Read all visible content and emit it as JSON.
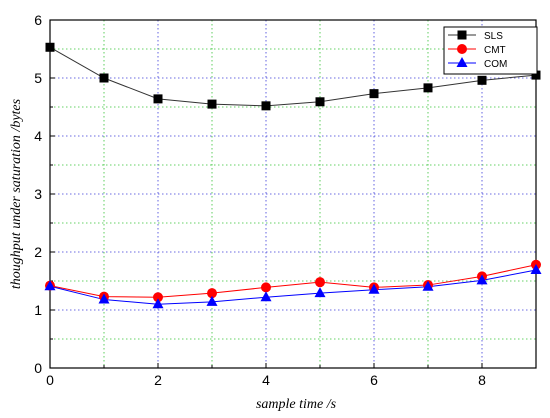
{
  "chart_data": {
    "type": "line",
    "xlabel": "sample time /s",
    "ylabel": "thoughput under saturation /bytes",
    "xlim": [
      0,
      9
    ],
    "ylim": [
      0,
      6
    ],
    "x_ticks": [
      "0",
      "2",
      "4",
      "6",
      "8"
    ],
    "y_ticks": [
      "0",
      "1",
      "2",
      "3",
      "4",
      "5",
      "6"
    ],
    "grid": true,
    "legend_position": "top-right",
    "x": [
      0,
      1,
      2,
      3,
      4,
      5,
      6,
      7,
      8,
      9
    ],
    "series": [
      {
        "name": "SLS",
        "color": "#000000",
        "marker": "square",
        "values": [
          5.53,
          5.0,
          4.64,
          4.55,
          4.52,
          4.59,
          4.73,
          4.83,
          4.96,
          5.05
        ]
      },
      {
        "name": "CMT",
        "color": "#ff0000",
        "marker": "circle",
        "values": [
          1.42,
          1.23,
          1.22,
          1.29,
          1.39,
          1.48,
          1.39,
          1.43,
          1.58,
          1.78
        ]
      },
      {
        "name": "COM",
        "color": "#0000ff",
        "marker": "triangle",
        "values": [
          1.41,
          1.18,
          1.1,
          1.14,
          1.22,
          1.29,
          1.35,
          1.4,
          1.51,
          1.69
        ]
      }
    ]
  }
}
